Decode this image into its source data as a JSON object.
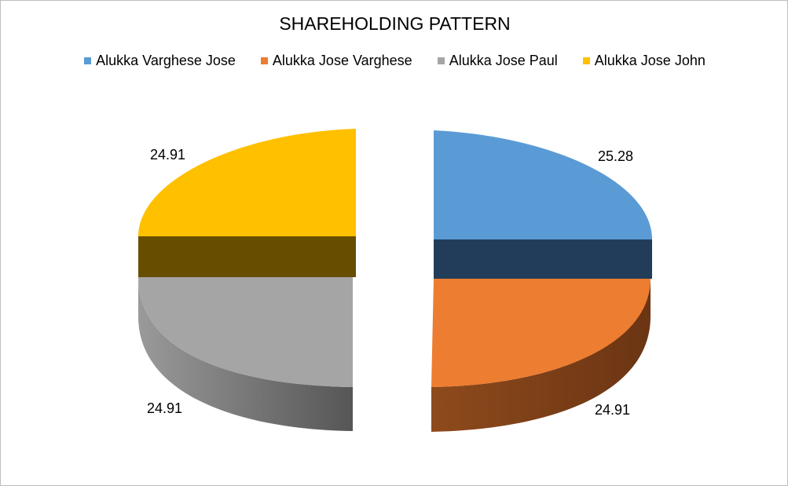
{
  "chart_data": {
    "type": "pie",
    "title": "SHAREHOLDING PATTERN",
    "legend_position": "top",
    "exploded": true,
    "style": "3d",
    "series": [
      {
        "name": "Alukka Varghese Jose",
        "value": 25.28,
        "label": "25.28",
        "color": "#5b9bd5"
      },
      {
        "name": "Alukka Jose Varghese",
        "value": 24.91,
        "label": "24.91",
        "color": "#ed7d31"
      },
      {
        "name": "Alukka Jose Paul",
        "value": 24.91,
        "label": "24.91",
        "color": "#a5a5a5"
      },
      {
        "name": "Alukka Jose John",
        "value": 24.91,
        "label": "24.91",
        "color": "#ffc000"
      }
    ]
  }
}
